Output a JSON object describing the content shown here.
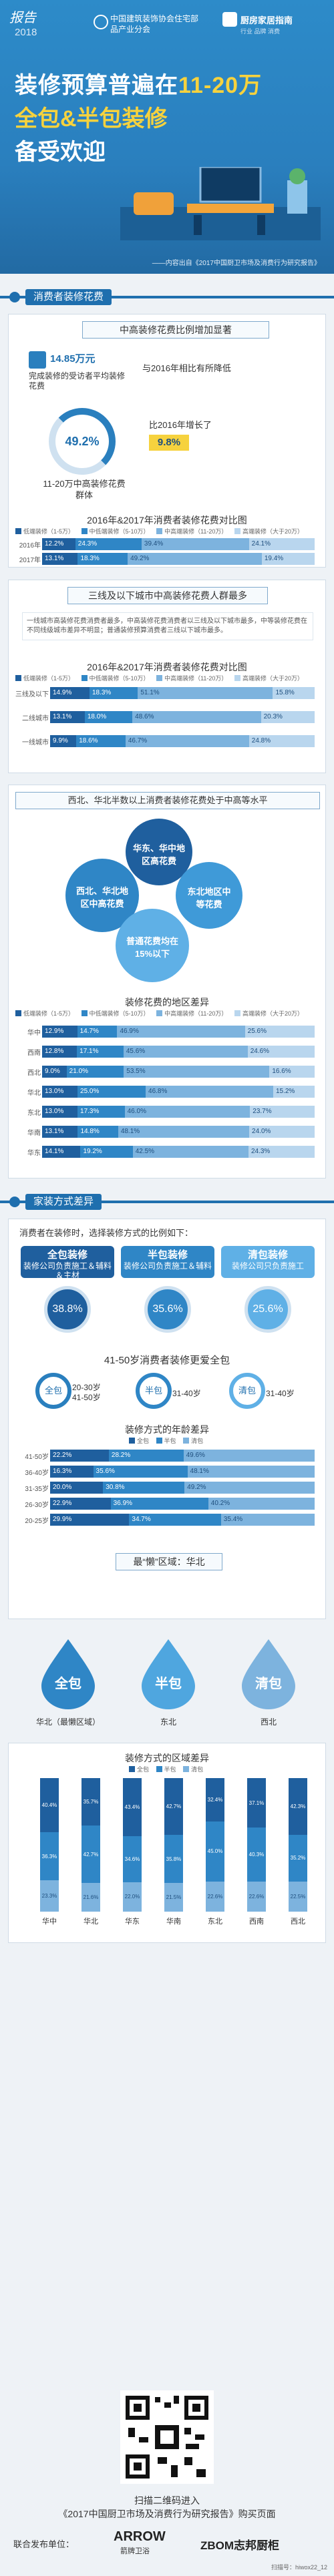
{
  "header": {
    "stamp": "报告",
    "year": "2018",
    "org1": "中国建筑装饰协会住宅部品产业分会",
    "org2": "厨房家居指南",
    "org2_sub": "行业  品牌  消费",
    "title_line1_a": "装修预算普遍在",
    "title_line1_b": "11-20万",
    "title_line2": "全包&半包装修",
    "title_line3": "备受欢迎",
    "source": "——内容出自《2017中国厨卫市场及消费行为研究报告》"
  },
  "section1": {
    "label": "消费者装修花费",
    "banner1": "中高装修花费比例增加显著",
    "stat_value": "14.85万元",
    "stat_desc": "完成装修的受访者平均装修花费",
    "stat_compare": "与2016年相比有所降低",
    "ring_value": "49.2%",
    "ring_caption": "11-20万中高装修花费群体",
    "growth_text": "比2016年增长了",
    "growth_value": "9.8%",
    "chart1_title": "2016年&2017年消费者装修花费对比图",
    "legend": [
      "低端装修（1-5万）",
      "中低端装修（5-10万）",
      "中高端装修（11-20万）",
      "高端装修（大于20万）"
    ],
    "banner2": "三线及以下城市中高装修花费人群最多",
    "note": "一线城市高装修花费消费者最多，中高装修花费消费者以三线及以下城市最多，中等装修花费在不同线级城市差异不明显；普通装修预算消费者三线以下城市最多。",
    "chart2_title": "2016年&2017年消费者装修花费对比图",
    "banner3": "西北、华北半数以上消费者装修花费处于中高等水平",
    "bubbles": [
      "华东、华中地区高花费",
      "西北、华北地区中高花费",
      "东北地区中等花费",
      "普通花费均在15%以下"
    ],
    "chart3_title": "装修花费的地区差异",
    "region_legend": [
      "低端装修（1-5万）",
      "中低端装修（5-10万）",
      "中高端装修（11-20万）",
      "高端装修（大于20万）"
    ]
  },
  "chart_data": [
    {
      "type": "bar",
      "title": "2016年&2017年消费者装修花费对比图",
      "categories": [
        "2016年",
        "2017年"
      ],
      "series": [
        {
          "name": "低端装修（1-5万）",
          "values": [
            12.2,
            13.1
          ]
        },
        {
          "name": "中低端装修（5-10万）",
          "values": [
            24.3,
            18.3
          ]
        },
        {
          "name": "中高端装修（11-20万）",
          "values": [
            39.4,
            49.2
          ]
        },
        {
          "name": "高端装修（大于20万）",
          "values": [
            24.1,
            19.4
          ]
        }
      ]
    },
    {
      "type": "bar",
      "title": "2016年&2017年消费者装修花费对比图",
      "categories": [
        "三线及以下",
        "二线城市",
        "一线城市"
      ],
      "series": [
        {
          "name": "低端装修（1-5万）",
          "values": [
            14.9,
            13.1,
            9.9
          ]
        },
        {
          "name": "中低端装修（5-10万）",
          "values": [
            18.3,
            18.0,
            18.6
          ]
        },
        {
          "name": "中高端装修（11-20万）",
          "values": [
            51.1,
            48.6,
            46.7
          ]
        },
        {
          "name": "高端装修（大于20万）",
          "values": [
            15.8,
            20.3,
            24.8
          ]
        }
      ]
    },
    {
      "type": "bar",
      "title": "装修花费的地区差异",
      "categories": [
        "华中",
        "西南",
        "西北",
        "华北",
        "东北",
        "华南",
        "华东"
      ],
      "series": [
        {
          "name": "低端装修（1-5万）",
          "values": [
            12.9,
            12.8,
            9.0,
            13.0,
            13.0,
            13.1,
            14.1
          ]
        },
        {
          "name": "中低端装修（5-10万）",
          "values": [
            14.7,
            17.1,
            21.0,
            25.0,
            17.3,
            14.8,
            19.2
          ]
        },
        {
          "name": "中高端装修（11-20万）",
          "values": [
            46.9,
            45.6,
            53.5,
            46.8,
            46.0,
            48.1,
            42.5
          ]
        },
        {
          "name": "高端装修（大于20万）",
          "values": [
            25.6,
            24.6,
            16.6,
            15.2,
            23.7,
            24.0,
            24.3
          ]
        }
      ]
    },
    {
      "type": "bar",
      "title": "装修方式的年龄差异",
      "categories": [
        "41-50岁",
        "36-40岁",
        "31-35岁",
        "26-30岁",
        "20-25岁"
      ],
      "series": [
        {
          "name": "全包",
          "values": [
            22.2,
            16.3,
            20.0,
            22.9,
            29.9
          ]
        },
        {
          "name": "半包",
          "values": [
            28.2,
            35.6,
            30.8,
            36.9,
            34.7
          ]
        },
        {
          "name": "清包",
          "values": [
            49.6,
            48.1,
            49.2,
            40.2,
            35.4
          ]
        }
      ]
    },
    {
      "type": "bar",
      "title": "装修方式的区域差异",
      "categories": [
        "华中",
        "华北",
        "华东",
        "华南",
        "东北",
        "西南",
        "西北"
      ],
      "series": [
        {
          "name": "全包",
          "values": [
            40.4,
            35.7,
            43.4,
            42.7,
            32.4,
            37.1,
            42.3
          ]
        },
        {
          "name": "半包",
          "values": [
            36.3,
            42.7,
            34.6,
            35.8,
            45.0,
            40.3,
            35.2
          ]
        },
        {
          "name": "清包",
          "values": [
            23.3,
            21.6,
            22.0,
            21.5,
            22.6,
            22.6,
            22.5
          ]
        }
      ]
    }
  ],
  "section2": {
    "label": "家装方式差异",
    "intro": "消费者在装修时，选择装修方式的比例如下：",
    "methods": [
      {
        "name": "全包装修",
        "desc": "装修公司负责施工＆辅料＆主材",
        "pct": "38.8%"
      },
      {
        "name": "半包装修",
        "desc": "装修公司负责施工＆辅料",
        "pct": "35.6%"
      },
      {
        "name": "清包装修",
        "desc": "装修公司只负责施工",
        "pct": "25.6%"
      }
    ],
    "age_banner": "41-50岁消费者装修更爱全包",
    "age_groups": [
      {
        "type": "全包",
        "ages": "20-30岁\n41-50岁"
      },
      {
        "type": "半包",
        "ages": "31-40岁"
      },
      {
        "type": "清包",
        "ages": "31-40岁"
      }
    ],
    "age_chart_title": "装修方式的年龄差异",
    "legend": [
      "全包",
      "半包",
      "清包"
    ],
    "region_banner": "最“懒”区域：华北",
    "drops": [
      {
        "type": "全包",
        "region": "华北（最懒区域）"
      },
      {
        "type": "半包",
        "region": "东北"
      },
      {
        "type": "清包",
        "region": "西北"
      }
    ],
    "region_chart_title": "装修方式的区域差异"
  },
  "footer": {
    "scan1": "扫描二维码进入",
    "scan2": "《2017中国厨卫市场及消费行为研究报告》购买页面",
    "joint": "联合发布单位：",
    "brand1": "ARROW",
    "brand1_sub": "箭牌卫浴",
    "brand2": "ZBOM志邦厨柜",
    "wechat": "扫描号：hiwox22_12"
  },
  "colors": {
    "c1": "#1f5f9e",
    "c2": "#2f86c6",
    "c3": "#7db3de",
    "c4": "#b9d6ee",
    "accent": "#f6d23e"
  }
}
